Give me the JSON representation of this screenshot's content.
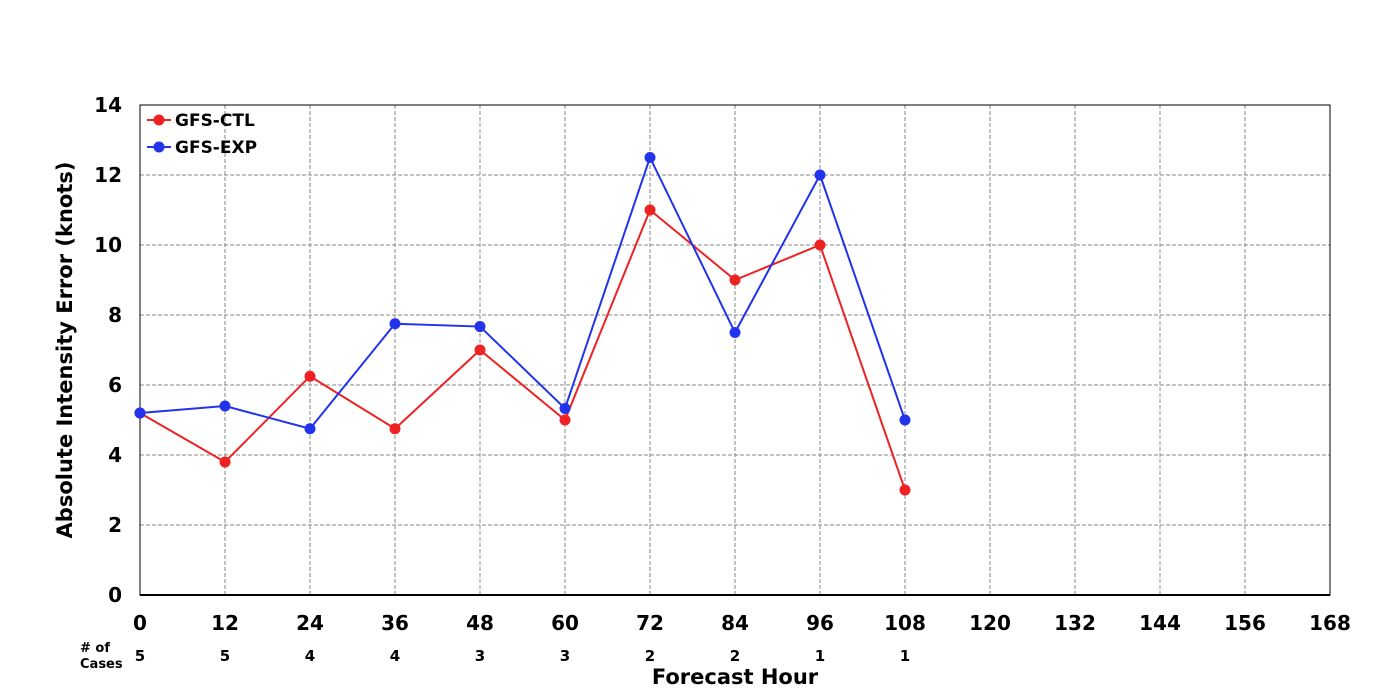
{
  "chart_data": {
    "type": "line",
    "title": "",
    "xlabel": "Forecast Hour",
    "ylabel": "Absolute Intensity Error (knots)",
    "xlim": [
      0,
      168
    ],
    "ylim": [
      0,
      14
    ],
    "x_ticks": [
      0,
      12,
      24,
      36,
      48,
      60,
      72,
      84,
      96,
      108,
      120,
      132,
      144,
      156,
      168
    ],
    "y_ticks": [
      0,
      2,
      4,
      6,
      8,
      10,
      12,
      14
    ],
    "grid": true,
    "legend_position": "top-left",
    "series": [
      {
        "name": "GFS-CTL",
        "color": "#ee2222",
        "marker": "circle",
        "x": [
          0,
          12,
          24,
          36,
          48,
          60,
          72,
          84,
          96,
          108
        ],
        "values": [
          5.2,
          3.8,
          6.25,
          4.75,
          7.0,
          5.0,
          11.0,
          9.0,
          10.0,
          3.0
        ]
      },
      {
        "name": "GFS-EXP",
        "color": "#2233ee",
        "marker": "circle",
        "x": [
          0,
          12,
          24,
          36,
          48,
          60,
          72,
          84,
          96,
          108
        ],
        "values": [
          5.2,
          5.4,
          4.75,
          7.75,
          7.67,
          5.33,
          12.5,
          7.5,
          12.0,
          5.0
        ]
      }
    ],
    "cases": {
      "label_line1": "# of",
      "label_line2": "Cases",
      "x": [
        0,
        12,
        24,
        36,
        48,
        60,
        72,
        84,
        96,
        108
      ],
      "counts": [
        "5",
        "5",
        "4",
        "4",
        "3",
        "3",
        "2",
        "2",
        "1",
        "1"
      ]
    }
  }
}
